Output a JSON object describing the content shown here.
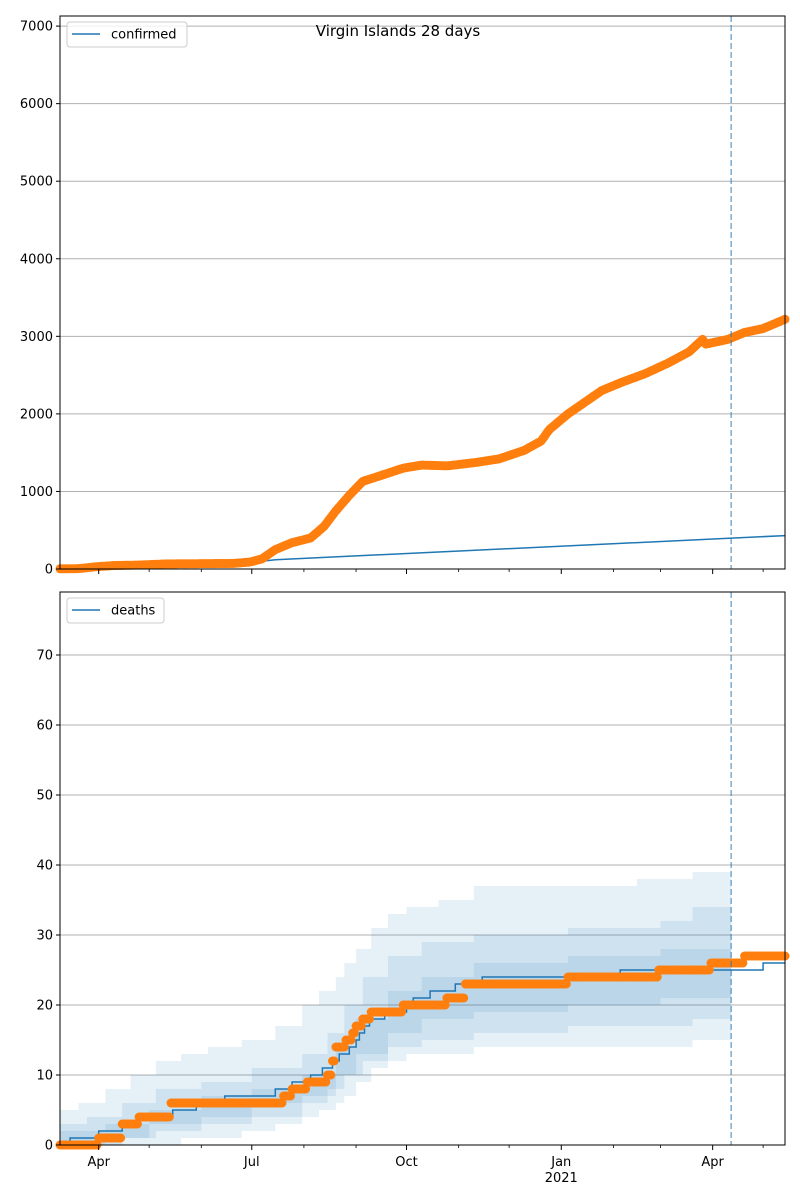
{
  "figure": {
    "title": "Virgin Islands 28 days"
  },
  "x_axis": {
    "ticks": [
      {
        "label": "Apr",
        "date": "2020-04-01"
      },
      {
        "label": "Jul",
        "date": "2020-07-01"
      },
      {
        "label": "Oct",
        "date": "2020-10-01"
      },
      {
        "label": "Jan",
        "sublabel": "2021",
        "date": "2021-01-01"
      },
      {
        "label": "Apr",
        "date": "2021-04-01"
      }
    ],
    "minor_ticks": [
      "2020-05-01",
      "2020-06-01",
      "2020-08-01",
      "2020-09-01",
      "2020-11-01",
      "2020-12-01",
      "2021-02-01",
      "2021-03-01",
      "2021-05-01"
    ],
    "range": [
      "2020-03-09",
      "2021-05-14"
    ]
  },
  "colors": {
    "model": "#1f77b4",
    "observed": "#ff7f0e",
    "band": "#1f77b4",
    "vline": "#1f77b4",
    "grid": "#b0b0b0"
  },
  "chart_data": [
    {
      "type": "line",
      "title": "Virgin Islands 28 days",
      "ylim": [
        0,
        7130
      ],
      "yticks": [
        0,
        1000,
        2000,
        3000,
        4000,
        5000,
        6000,
        7000
      ],
      "grid": "horizontal",
      "legend_position": "top-left",
      "vline_date": "2021-04-12",
      "series": [
        {
          "name": "confirmed",
          "kind": "line",
          "points": [
            [
              "2020-03-09",
              2
            ],
            [
              "2020-04-01",
              30
            ],
            [
              "2020-05-01",
              45
            ],
            [
              "2020-06-01",
              55
            ],
            [
              "2020-07-01",
              85
            ],
            [
              "2020-07-15",
              120
            ],
            [
              "2021-05-14",
              430
            ]
          ]
        },
        {
          "kind": "markers",
          "points": [
            [
              "2020-03-09",
              2
            ],
            [
              "2020-03-20",
              5
            ],
            [
              "2020-03-31",
              30
            ],
            [
              "2020-04-10",
              45
            ],
            [
              "2020-04-25",
              51
            ],
            [
              "2020-05-10",
              65
            ],
            [
              "2020-05-31",
              69
            ],
            [
              "2020-06-20",
              72
            ],
            [
              "2020-06-30",
              90
            ],
            [
              "2020-07-07",
              130
            ],
            [
              "2020-07-15",
              250
            ],
            [
              "2020-07-25",
              340
            ],
            [
              "2020-08-05",
              400
            ],
            [
              "2020-08-13",
              550
            ],
            [
              "2020-08-20",
              750
            ],
            [
              "2020-08-28",
              950
            ],
            [
              "2020-09-05",
              1130
            ],
            [
              "2020-09-15",
              1200
            ],
            [
              "2020-09-29",
              1300
            ],
            [
              "2020-10-10",
              1340
            ],
            [
              "2020-10-25",
              1330
            ],
            [
              "2020-11-10",
              1370
            ],
            [
              "2020-11-25",
              1420
            ],
            [
              "2020-12-10",
              1530
            ],
            [
              "2020-12-20",
              1650
            ],
            [
              "2020-12-25",
              1800
            ],
            [
              "2021-01-05",
              2000
            ],
            [
              "2021-01-15",
              2150
            ],
            [
              "2021-01-25",
              2300
            ],
            [
              "2021-02-05",
              2400
            ],
            [
              "2021-02-20",
              2520
            ],
            [
              "2021-03-05",
              2650
            ],
            [
              "2021-03-18",
              2800
            ],
            [
              "2021-03-26",
              2960
            ],
            [
              "2021-03-28",
              2900
            ],
            [
              "2021-04-10",
              2960
            ],
            [
              "2021-04-20",
              3050
            ],
            [
              "2021-05-01",
              3100
            ],
            [
              "2021-05-14",
              3220
            ]
          ]
        }
      ]
    },
    {
      "type": "line",
      "ylim": [
        0,
        79
      ],
      "yticks": [
        0,
        10,
        20,
        30,
        40,
        50,
        60,
        70
      ],
      "grid": "horizontal",
      "legend_position": "top-left",
      "vline_date": "2021-04-12",
      "bands": [
        {
          "opacity": 0.11,
          "points": [
            [
              "2020-03-09",
              0,
              5
            ],
            [
              "2020-03-20",
              0,
              6
            ],
            [
              "2020-04-05",
              0,
              8
            ],
            [
              "2020-04-20",
              0,
              10
            ],
            [
              "2020-05-05",
              0,
              12
            ],
            [
              "2020-05-20",
              1,
              13
            ],
            [
              "2020-06-05",
              1,
              14
            ],
            [
              "2020-06-25",
              2,
              15
            ],
            [
              "2020-07-15",
              3,
              17
            ],
            [
              "2020-07-31",
              4,
              20
            ],
            [
              "2020-08-10",
              5,
              22
            ],
            [
              "2020-08-20",
              6,
              24
            ],
            [
              "2020-08-25",
              7,
              26
            ],
            [
              "2020-09-01",
              9,
              28
            ],
            [
              "2020-09-10",
              11,
              31
            ],
            [
              "2020-09-20",
              12,
              33
            ],
            [
              "2020-10-01",
              13,
              34
            ],
            [
              "2020-10-20",
              13,
              35
            ],
            [
              "2020-11-10",
              14,
              37
            ],
            [
              "2021-02-01",
              14,
              37
            ],
            [
              "2021-02-15",
              14,
              38
            ],
            [
              "2021-03-20",
              15,
              39
            ],
            [
              "2021-04-12",
              15,
              39
            ]
          ]
        },
        {
          "opacity": 0.11,
          "points": [
            [
              "2020-03-09",
              0,
              3
            ],
            [
              "2020-03-25",
              0,
              4
            ],
            [
              "2020-04-15",
              1,
              6
            ],
            [
              "2020-05-05",
              2,
              8
            ],
            [
              "2020-06-01",
              3,
              9
            ],
            [
              "2020-07-01",
              4,
              11
            ],
            [
              "2020-07-31",
              6,
              13
            ],
            [
              "2020-08-15",
              8,
              16
            ],
            [
              "2020-08-25",
              10,
              20
            ],
            [
              "2020-09-05",
              12,
              24
            ],
            [
              "2020-09-20",
              14,
              27
            ],
            [
              "2020-10-10",
              15,
              29
            ],
            [
              "2020-11-10",
              16,
              30
            ],
            [
              "2021-01-05",
              17,
              31
            ],
            [
              "2021-03-01",
              17,
              32
            ],
            [
              "2021-03-20",
              18,
              34
            ],
            [
              "2021-04-12",
              18,
              34
            ]
          ]
        },
        {
          "opacity": 0.11,
          "points": [
            [
              "2020-03-09",
              0,
              2
            ],
            [
              "2020-04-05",
              1,
              3
            ],
            [
              "2020-05-01",
              3,
              5
            ],
            [
              "2020-06-01",
              4,
              7
            ],
            [
              "2020-07-01",
              6,
              8
            ],
            [
              "2020-07-31",
              7,
              10
            ],
            [
              "2020-08-20",
              10,
              14
            ],
            [
              "2020-09-01",
              13,
              18
            ],
            [
              "2020-09-20",
              16,
              22
            ],
            [
              "2020-10-10",
              18,
              24
            ],
            [
              "2020-11-10",
              19,
              26
            ],
            [
              "2021-01-05",
              20,
              27
            ],
            [
              "2021-03-01",
              21,
              28
            ],
            [
              "2021-04-12",
              21,
              30
            ]
          ]
        }
      ],
      "series": [
        {
          "name": "deaths",
          "kind": "step",
          "points": [
            [
              "2020-03-09",
              0
            ],
            [
              "2020-03-15",
              1
            ],
            [
              "2020-04-01",
              2
            ],
            [
              "2020-04-15",
              3
            ],
            [
              "2020-04-25",
              4
            ],
            [
              "2020-05-15",
              5
            ],
            [
              "2020-05-29",
              6
            ],
            [
              "2020-06-15",
              7
            ],
            [
              "2020-07-15",
              8
            ],
            [
              "2020-07-25",
              9
            ],
            [
              "2020-08-05",
              10
            ],
            [
              "2020-08-12",
              11
            ],
            [
              "2020-08-18",
              12
            ],
            [
              "2020-08-22",
              13
            ],
            [
              "2020-08-28",
              14
            ],
            [
              "2020-09-01",
              15
            ],
            [
              "2020-09-03",
              16
            ],
            [
              "2020-09-06",
              17
            ],
            [
              "2020-09-09",
              18
            ],
            [
              "2020-09-18",
              19
            ],
            [
              "2020-10-01",
              20
            ],
            [
              "2020-10-05",
              21
            ],
            [
              "2020-10-15",
              22
            ],
            [
              "2020-10-30",
              23
            ],
            [
              "2020-11-15",
              24
            ],
            [
              "2021-02-05",
              25
            ],
            [
              "2021-05-01",
              26
            ],
            [
              "2021-05-14",
              26
            ]
          ]
        },
        {
          "kind": "step-markers",
          "points": [
            [
              "2020-03-09",
              0
            ],
            [
              "2020-04-01",
              1
            ],
            [
              "2020-04-15",
              3
            ],
            [
              "2020-04-25",
              4
            ],
            [
              "2020-05-14",
              6
            ],
            [
              "2020-07-20",
              7
            ],
            [
              "2020-07-25",
              8
            ],
            [
              "2020-08-03",
              9
            ],
            [
              "2020-08-15",
              10
            ],
            [
              "2020-08-18",
              12
            ],
            [
              "2020-08-20",
              14
            ],
            [
              "2020-08-26",
              15
            ],
            [
              "2020-08-30",
              16
            ],
            [
              "2020-09-01",
              17
            ],
            [
              "2020-09-05",
              18
            ],
            [
              "2020-09-10",
              19
            ],
            [
              "2020-09-29",
              20
            ],
            [
              "2020-10-25",
              21
            ],
            [
              "2020-11-05",
              23
            ],
            [
              "2021-01-05",
              24
            ],
            [
              "2021-02-28",
              25
            ],
            [
              "2021-03-31",
              26
            ],
            [
              "2021-04-20",
              27
            ],
            [
              "2021-05-14",
              27
            ]
          ]
        }
      ]
    }
  ]
}
